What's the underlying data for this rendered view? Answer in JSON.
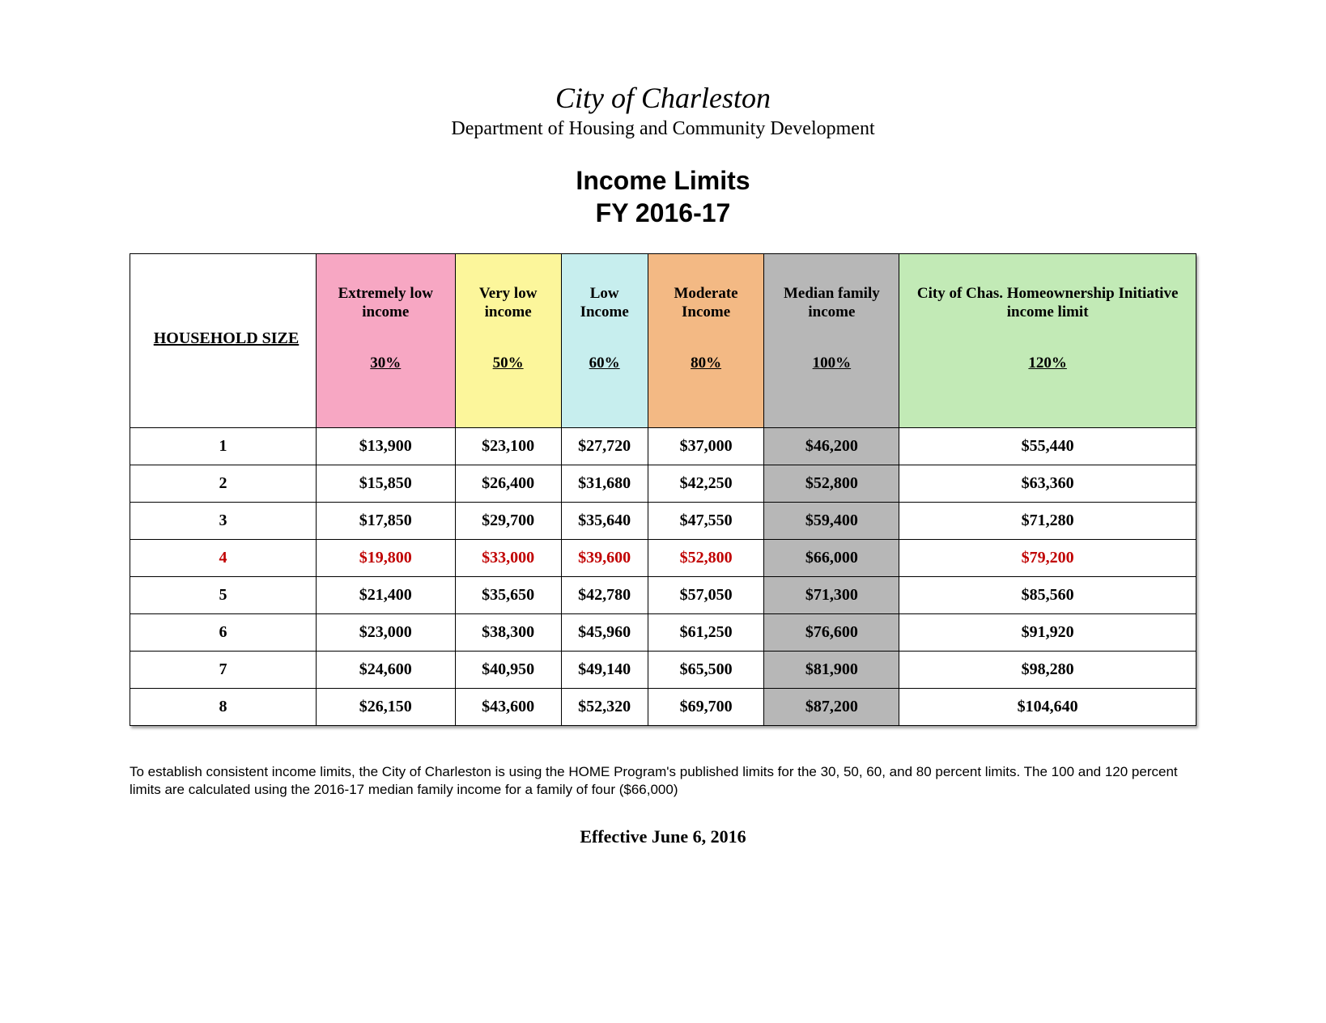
{
  "header": {
    "city": "City of Charleston",
    "department": "Department of Housing and Community Development",
    "title_line1": "Income Limits",
    "title_line2": "FY 2016-17"
  },
  "table": {
    "household_label": "HOUSEHOLD SIZE",
    "columns": [
      {
        "label": "Extremely low income",
        "pct": "30%",
        "bg": "#f7a7c3"
      },
      {
        "label": "Very low income",
        "pct": "50%",
        "bg": "#fcf69b"
      },
      {
        "label": "Low Income",
        "pct": "60%",
        "bg": "#c7eeee"
      },
      {
        "label": "Moderate Income",
        "pct": "80%",
        "bg": "#f3b984"
      },
      {
        "label": "Median family income",
        "pct": "100%",
        "bg": "#b7b7b7"
      },
      {
        "label": "City of Chas. Homeownership Initiative income limit",
        "pct": "120%",
        "bg": "#c2eab6"
      }
    ],
    "highlight_row_index": 3,
    "median_col_index": 4,
    "median_body_bg": "#b7b7b7",
    "rows": [
      {
        "size": "1",
        "values": [
          "$13,900",
          "$23,100",
          "$27,720",
          "$37,000",
          "$46,200",
          "$55,440"
        ]
      },
      {
        "size": "2",
        "values": [
          "$15,850",
          "$26,400",
          "$31,680",
          "$42,250",
          "$52,800",
          "$63,360"
        ]
      },
      {
        "size": "3",
        "values": [
          "$17,850",
          "$29,700",
          "$35,640",
          "$47,550",
          "$59,400",
          "$71,280"
        ]
      },
      {
        "size": "4",
        "values": [
          "$19,800",
          "$33,000",
          "$39,600",
          "$52,800",
          "$66,000",
          "$79,200"
        ]
      },
      {
        "size": "5",
        "values": [
          "$21,400",
          "$35,650",
          "$42,780",
          "$57,050",
          "$71,300",
          "$85,560"
        ]
      },
      {
        "size": "6",
        "values": [
          "$23,000",
          "$38,300",
          "$45,960",
          "$61,250",
          "$76,600",
          "$91,920"
        ]
      },
      {
        "size": "7",
        "values": [
          "$24,600",
          "$40,950",
          "$49,140",
          "$65,500",
          "$81,900",
          "$98,280"
        ]
      },
      {
        "size": "8",
        "values": [
          "$26,150",
          "$43,600",
          "$52,320",
          "$69,700",
          "$87,200",
          "$104,640"
        ]
      }
    ]
  },
  "footnote": "To establish consistent income limits, the City of Charleston is using the HOME Program's published limits for the 30, 50, 60, and 80 percent limits.  The 100 and 120 percent limits are calculated using the 2016-17 median family income for a family of four ($66,000)",
  "effective": "Effective June 6, 2016"
}
